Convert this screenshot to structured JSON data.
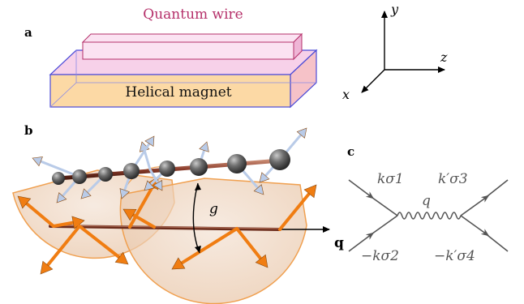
{
  "panels": {
    "a": "a",
    "b": "b",
    "c": "c"
  },
  "panel_a": {
    "wire_label": "Quantum wire",
    "magnet_label": "Helical magnet",
    "axes": {
      "x": "x",
      "y": "y",
      "z": "z"
    }
  },
  "panel_b": {
    "coupling_label": "g",
    "wavevector_label": "q"
  },
  "panel_c": {
    "top_left": "kσ1",
    "top_right": "k′σ3",
    "bottom_left": "−kσ2",
    "bottom_right": "−k′σ4",
    "propagator": "q"
  },
  "colors": {
    "wire_fill": "#f9d5ec",
    "wire_edge": "#b5306a",
    "magnet_fill": "#fcd9a5",
    "magnet_edge": "#4b4bd8",
    "arrow_orange": "#f07d12",
    "spin_blue": "#b9cbe8",
    "chain_red": "#8a3b2a",
    "diagram_line": "#555555"
  }
}
